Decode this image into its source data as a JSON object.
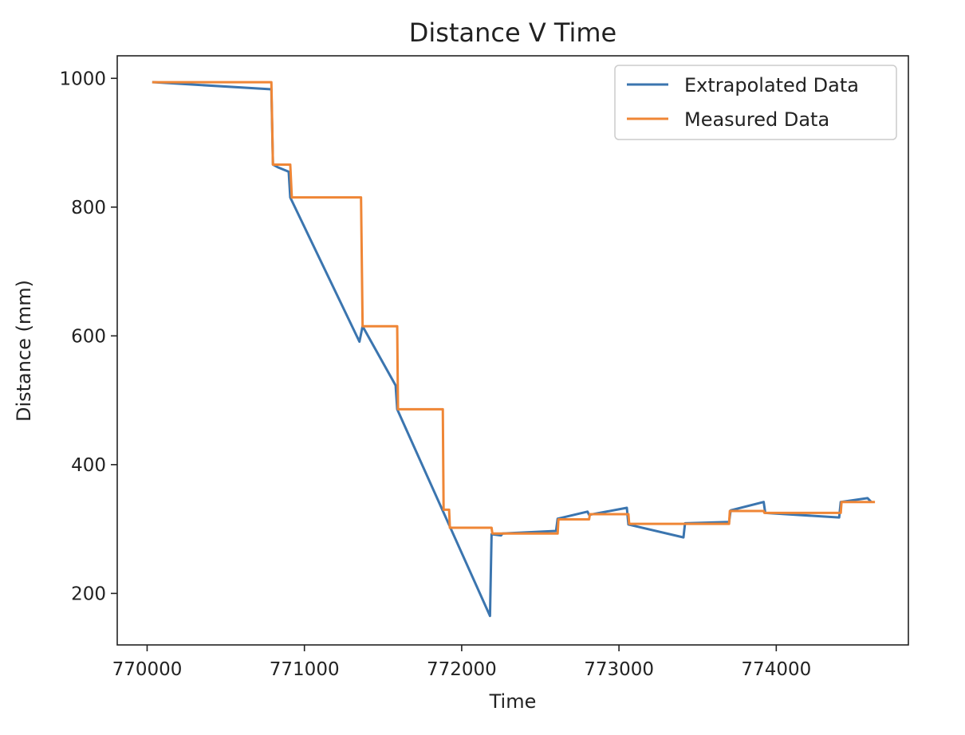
{
  "chart_data": {
    "type": "line",
    "title": "Distance V Time",
    "xlabel": "Time",
    "ylabel": "Distance (mm)",
    "xlim": [
      769810,
      774840
    ],
    "ylim": [
      120,
      1035
    ],
    "xticks": [
      770000,
      771000,
      772000,
      773000,
      774000
    ],
    "yticks": [
      200,
      400,
      600,
      800,
      1000
    ],
    "grid": false,
    "legend": "top-right",
    "series": [
      {
        "name": "Extrapolated Data",
        "color": "#3b75af",
        "step": false,
        "points": [
          [
            770040,
            994
          ],
          [
            770790,
            983
          ],
          [
            770800,
            866
          ],
          [
            770830,
            862
          ],
          [
            770900,
            855
          ],
          [
            770910,
            815
          ],
          [
            771350,
            591
          ],
          [
            771370,
            615
          ],
          [
            771580,
            523
          ],
          [
            771590,
            486
          ],
          [
            772180,
            165
          ],
          [
            772190,
            292
          ],
          [
            772250,
            290
          ],
          [
            772260,
            293
          ],
          [
            772600,
            297
          ],
          [
            772610,
            316
          ],
          [
            772800,
            327
          ],
          [
            772810,
            322
          ],
          [
            773050,
            333
          ],
          [
            773060,
            307
          ],
          [
            773410,
            287
          ],
          [
            773420,
            309
          ],
          [
            773700,
            311
          ],
          [
            773710,
            329
          ],
          [
            773920,
            342
          ],
          [
            773930,
            325
          ],
          [
            774400,
            318
          ],
          [
            774410,
            342
          ],
          [
            774580,
            348
          ],
          [
            774600,
            343
          ]
        ]
      },
      {
        "name": "Measured Data",
        "color": "#ef8636",
        "step": true,
        "points": [
          [
            770040,
            994
          ],
          [
            770790,
            994
          ],
          [
            770800,
            866
          ],
          [
            770910,
            866
          ],
          [
            770920,
            815
          ],
          [
            771360,
            815
          ],
          [
            771370,
            615
          ],
          [
            771590,
            615
          ],
          [
            771595,
            486
          ],
          [
            771880,
            486
          ],
          [
            771885,
            330
          ],
          [
            771920,
            330
          ],
          [
            771925,
            302
          ],
          [
            772190,
            302
          ],
          [
            772195,
            293
          ],
          [
            772610,
            293
          ],
          [
            772615,
            315
          ],
          [
            772810,
            315
          ],
          [
            772815,
            323
          ],
          [
            773060,
            323
          ],
          [
            773065,
            308
          ],
          [
            773700,
            308
          ],
          [
            773705,
            328
          ],
          [
            773920,
            328
          ],
          [
            773925,
            325
          ],
          [
            774410,
            325
          ],
          [
            774415,
            342
          ],
          [
            774620,
            342
          ]
        ]
      }
    ]
  }
}
